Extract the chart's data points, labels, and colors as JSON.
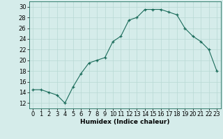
{
  "x": [
    0,
    1,
    2,
    3,
    4,
    5,
    6,
    7,
    8,
    9,
    10,
    11,
    12,
    13,
    14,
    15,
    16,
    17,
    18,
    19,
    20,
    21,
    22,
    23
  ],
  "y": [
    14.5,
    14.5,
    14.0,
    13.5,
    12.0,
    15.0,
    17.5,
    19.5,
    20.0,
    20.5,
    23.5,
    24.5,
    27.5,
    28.0,
    29.5,
    29.5,
    29.5,
    29.0,
    28.5,
    26.0,
    24.5,
    23.5,
    22.0,
    18.0
  ],
  "xlabel": "Humidex (Indice chaleur)",
  "xlim": [
    -0.5,
    23.5
  ],
  "ylim": [
    11,
    31
  ],
  "yticks": [
    12,
    14,
    16,
    18,
    20,
    22,
    24,
    26,
    28,
    30
  ],
  "xticks": [
    0,
    1,
    2,
    3,
    4,
    5,
    6,
    7,
    8,
    9,
    10,
    11,
    12,
    13,
    14,
    15,
    16,
    17,
    18,
    19,
    20,
    21,
    22,
    23
  ],
  "line_color": "#1a6b5a",
  "marker": "+",
  "bg_color": "#d5ecea",
  "grid_color": "#b8d8d4",
  "label_fontsize": 6.5,
  "tick_fontsize": 6.0
}
